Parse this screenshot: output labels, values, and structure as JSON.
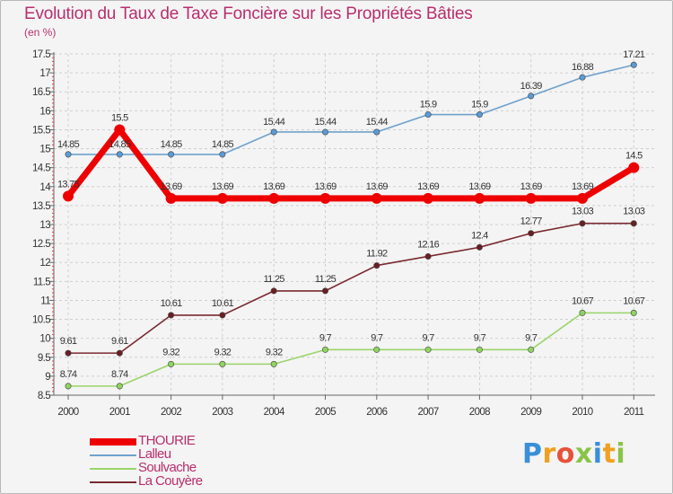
{
  "header": {
    "title": "Evolution du Taux de Taxe Foncière sur les Propriétés Bâties",
    "subtitle": "(en %)"
  },
  "chart_data": {
    "type": "line",
    "title": "Evolution du Taux de Taxe Foncière sur les Propriétés Bâties",
    "ylabel": "(en %)",
    "xlabel": "",
    "ylim": [
      8.5,
      17.5
    ],
    "yticks": [
      "8.5",
      "9",
      "9.5",
      "10",
      "10.5",
      "11",
      "11.5",
      "12",
      "12.5",
      "13",
      "13.5",
      "14",
      "14.5",
      "15",
      "15.5",
      "16",
      "16.5",
      "17",
      "17.5"
    ],
    "categories": [
      "2000",
      "2001",
      "2002",
      "2003",
      "2004",
      "2005",
      "2006",
      "2007",
      "2008",
      "2009",
      "2010",
      "2011"
    ],
    "series": [
      {
        "name": "Lalleu",
        "color": "#6fa1cc",
        "values": [
          14.85,
          14.85,
          14.85,
          14.85,
          15.44,
          15.44,
          15.44,
          15.9,
          15.9,
          16.39,
          16.88,
          17.21
        ],
        "labels": [
          "14.85",
          "14.85",
          "14.85",
          "14.85",
          "15.44",
          "15.44",
          "15.44",
          "15.9",
          "15.9",
          "16.39",
          "16.88",
          "17.21"
        ]
      },
      {
        "name": "Soulvache",
        "color": "#9ad46a",
        "values": [
          8.74,
          8.74,
          9.32,
          9.32,
          9.32,
          9.7,
          9.7,
          9.7,
          9.7,
          9.7,
          10.67,
          10.67
        ],
        "labels": [
          "8.74",
          "8.74",
          "9.32",
          "9.32",
          "9.32",
          "9.7",
          "9.7",
          "9.7",
          "9.7",
          "9.7",
          "10.67",
          "10.67"
        ]
      },
      {
        "name": "La Couyère",
        "color": "#7a2a30",
        "values": [
          9.61,
          9.61,
          10.61,
          10.61,
          11.25,
          11.25,
          11.92,
          12.16,
          12.4,
          12.77,
          13.03,
          13.03
        ],
        "labels": [
          "9.61",
          "9.61",
          "10.61",
          "10.61",
          "11.25",
          "11.25",
          "11.92",
          "12.16",
          "12.4",
          "12.77",
          "13.03",
          "13.03"
        ]
      },
      {
        "name": "THOURIE",
        "color": "#ee0000",
        "values": [
          13.75,
          15.5,
          13.69,
          13.69,
          13.69,
          13.69,
          13.69,
          13.69,
          13.69,
          13.69,
          13.69,
          14.5
        ],
        "labels": [
          "13.75",
          "15.5",
          "13.69",
          "13.69",
          "13.69",
          "13.69",
          "13.69",
          "13.69",
          "13.69",
          "13.69",
          "13.69",
          "14.5"
        ]
      }
    ]
  },
  "legend": {
    "items": [
      {
        "label": "THOURIE",
        "color": "#ee0000"
      },
      {
        "label": "Lalleu",
        "color": "#6fa1cc"
      },
      {
        "label": "Soulvache",
        "color": "#9ad46a"
      },
      {
        "label": "La Couyère",
        "color": "#7a2a30"
      }
    ]
  },
  "logo": {
    "letters": [
      "P",
      "r",
      "o",
      "x",
      "i",
      "t",
      "i"
    ],
    "colors": [
      "#3a8fd6",
      "#f0a020",
      "#e8503a",
      "#8bc34a",
      "#3a8fd6",
      "#f0a020",
      "#8bc34a"
    ]
  }
}
